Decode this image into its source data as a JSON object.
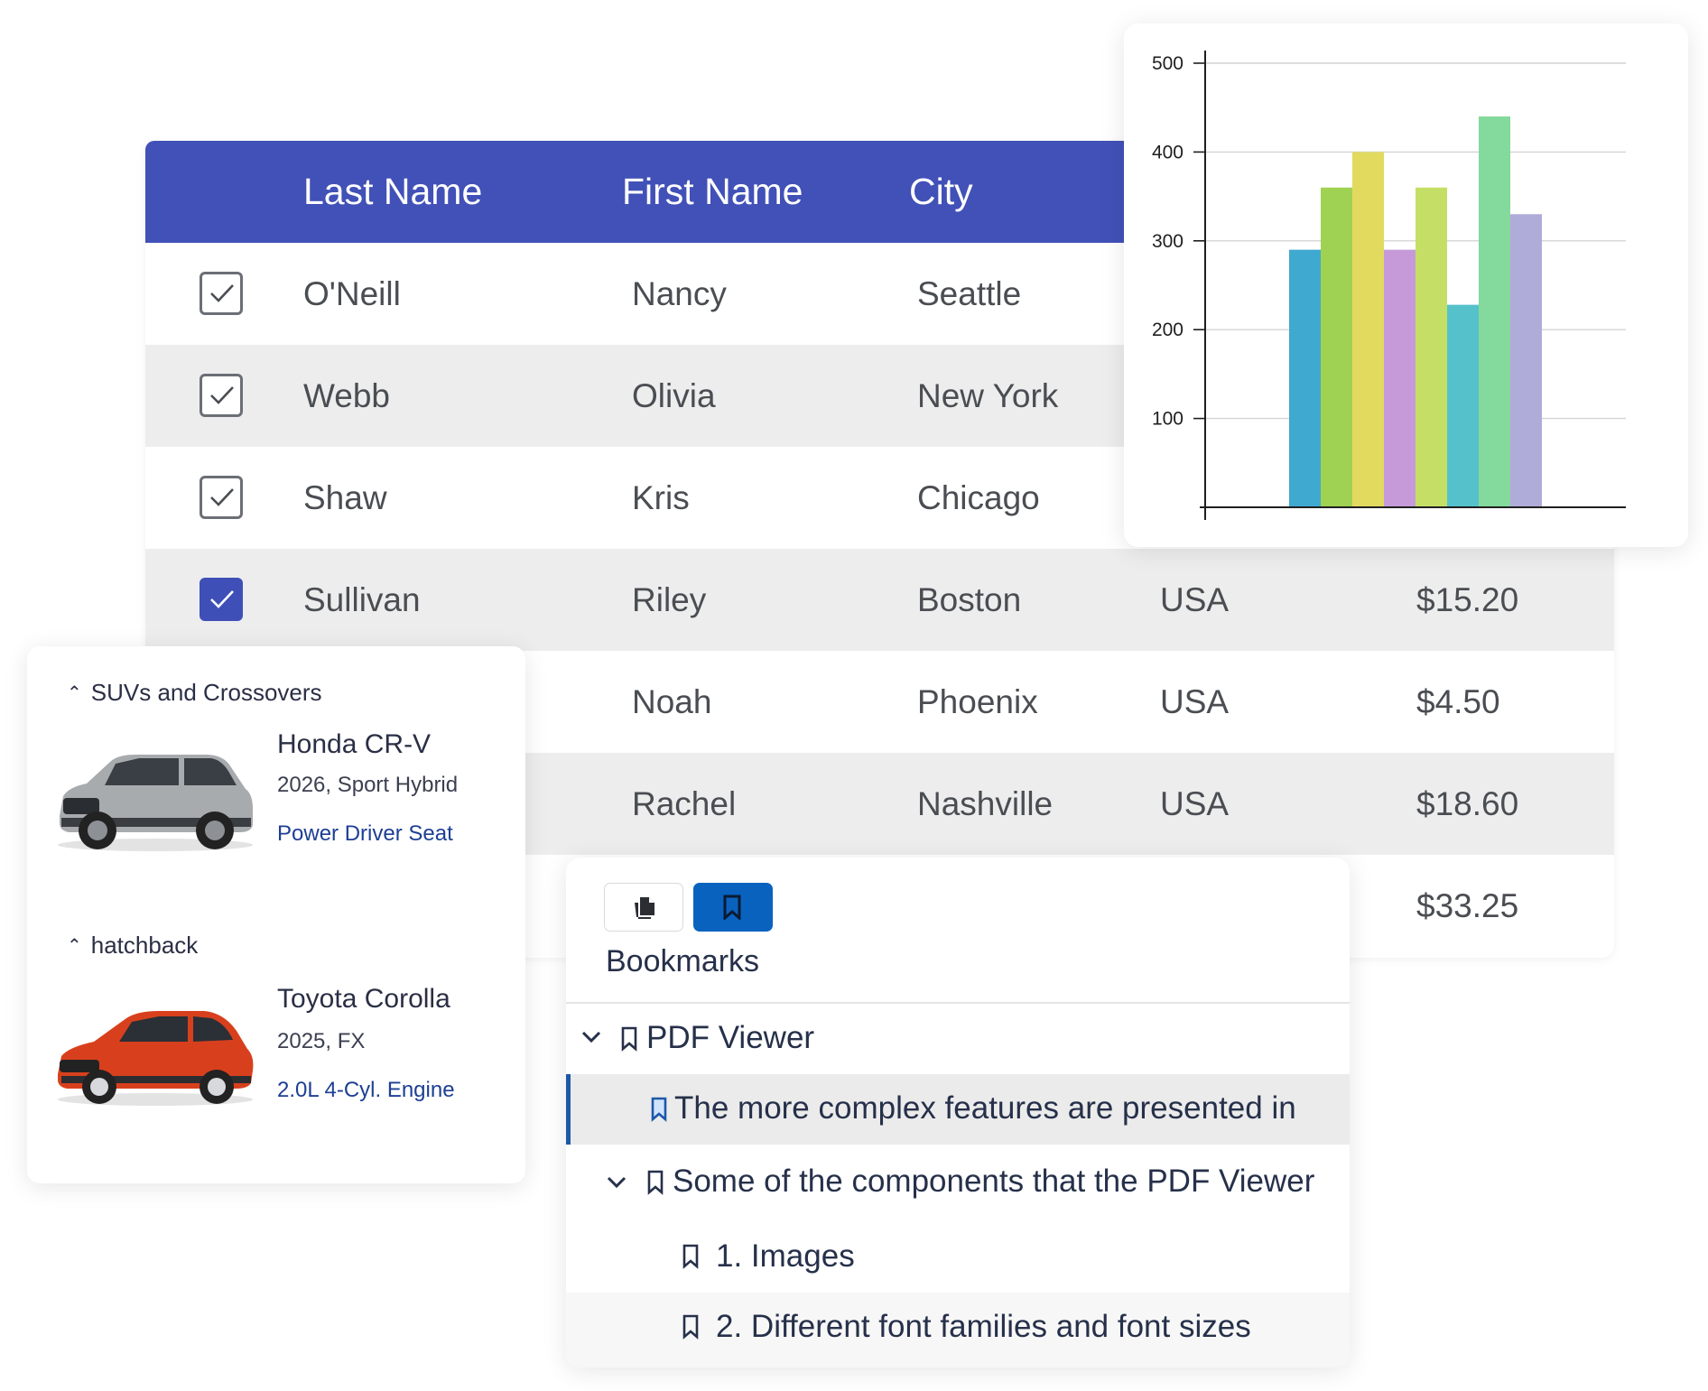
{
  "grid": {
    "columns": [
      "Last Name",
      "First Name",
      "City"
    ],
    "rows": [
      {
        "checked": false,
        "last": "O'Neill",
        "first": "Nancy",
        "city": "Seattle",
        "country": "",
        "amount": ""
      },
      {
        "checked": false,
        "last": "Webb",
        "first": "Olivia",
        "city": "New York",
        "country": "",
        "amount": ""
      },
      {
        "checked": false,
        "last": "Shaw",
        "first": "Kris",
        "city": "Chicago",
        "country": "",
        "amount": ""
      },
      {
        "checked": true,
        "last": "Sullivan",
        "first": "Riley",
        "city": "Boston",
        "country": "USA",
        "amount": "$15.20"
      },
      {
        "checked": false,
        "last": "",
        "first": "Noah",
        "city": "Phoenix",
        "country": "USA",
        "amount": "$4.50"
      },
      {
        "checked": false,
        "last": "",
        "first": "Rachel",
        "city": "Nashville",
        "country": "USA",
        "amount": "$18.60"
      },
      {
        "checked": false,
        "last": "",
        "first": "",
        "city": "",
        "country": "",
        "amount": "$33.25"
      }
    ],
    "colors": {
      "header": "#4151b7",
      "checked": "#3e4fb7"
    }
  },
  "chart_data": {
    "type": "bar",
    "ylim": [
      0,
      500
    ],
    "yticks": [
      100,
      200,
      300,
      400,
      500
    ],
    "grid": true,
    "values": [
      290,
      360,
      400,
      290,
      360,
      228,
      440,
      330
    ],
    "colors": [
      "#3fa9cf",
      "#9fd253",
      "#e2da5f",
      "#c69ad9",
      "#c5df66",
      "#55c1cb",
      "#84d99c",
      "#b0acd9"
    ]
  },
  "cars": {
    "groups": [
      {
        "title": "SUVs and Crossovers",
        "car": {
          "name": "Honda CR-V",
          "sub": "2026, Sport Hybrid",
          "feature": "Power Driver Seat",
          "image": "silver-suv-image"
        }
      },
      {
        "title": "hatchback",
        "car": {
          "name": "Toyota Corolla",
          "sub": "2025, FX",
          "feature": "2.0L 4-Cyl. Engine",
          "image": "red-hatchback-image"
        }
      }
    ]
  },
  "pdf": {
    "title": "Bookmarks",
    "toolbar": {
      "thumbnails_icon": "page-thumbnails-icon",
      "bookmarks_icon": "bookmark-icon"
    },
    "items": [
      {
        "text": "PDF Viewer"
      },
      {
        "text": "The more complex features are presented in"
      },
      {
        "text": "Some of the components that the PDF Viewer"
      },
      {
        "text": "1.  Images"
      },
      {
        "text": "2.  Different font families and font sizes"
      }
    ]
  }
}
